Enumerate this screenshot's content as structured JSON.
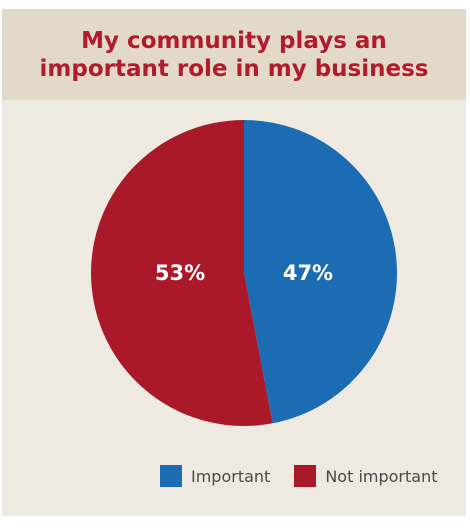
{
  "chart_data": {
    "type": "pie",
    "title_lines": [
      "My community plays an",
      "important role in my business"
    ],
    "slices": [
      {
        "name": "Important",
        "value": 47,
        "label": "47%",
        "color": "#1c6cb3"
      },
      {
        "name": "Not important",
        "value": 53,
        "label": "53%",
        "color": "#a91929"
      }
    ],
    "legend_position": "bottom-right"
  },
  "colors": {
    "title": "#b01c2e",
    "header_bg": "#e3d9c9",
    "panel_bg": "#eee9e1"
  }
}
